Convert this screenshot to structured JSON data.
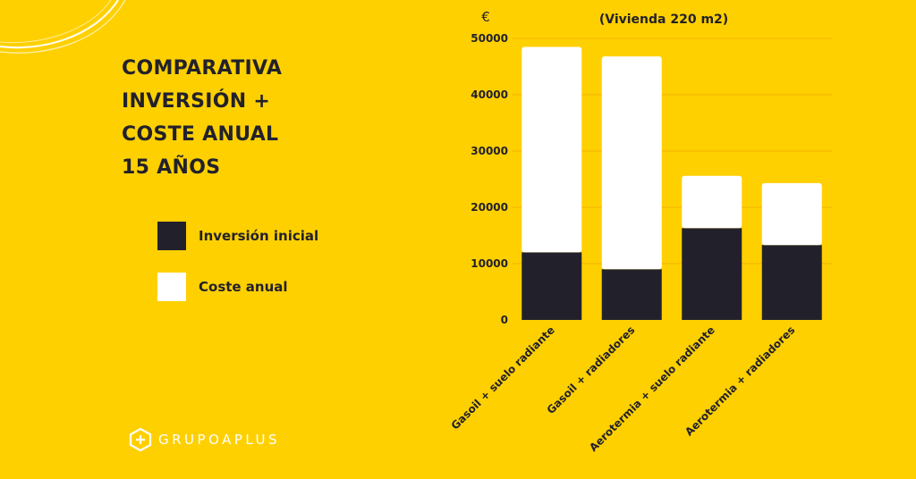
{
  "heading": {
    "lines": [
      "COMPARATIVA",
      "INVERSIÓN +",
      "COSTE ANUAL",
      "15 AÑOS"
    ]
  },
  "logo": {
    "text": "GRUPOAPLUS",
    "icon": "hexagon-plus-logo-icon"
  },
  "colors": {
    "background": "#FFD000",
    "inversion": "#22212B",
    "coste": "#FFFFFF",
    "logo": "#FFFFFF"
  },
  "chart_data": {
    "type": "bar",
    "stacked": true,
    "title": "(Vivienda 220 m2)",
    "ylabel": "€",
    "xlabel": "",
    "ylim": [
      0,
      50000
    ],
    "yticks": [
      0,
      10000,
      20000,
      30000,
      40000,
      50000
    ],
    "grid": true,
    "categories": [
      "Gasoil + suelo radiante",
      "Gasoil + radiadores",
      "Aerotermia + suelo radiante",
      "Aerotermia + radiadores"
    ],
    "series": [
      {
        "name": "Inversión inicial",
        "color": "#22212B",
        "values": [
          12000,
          9000,
          16300,
          13300
        ]
      },
      {
        "name": "Coste anual",
        "color": "#FFFFFF",
        "values": [
          36500,
          37800,
          9300,
          11000
        ]
      }
    ],
    "legend_position": "left"
  }
}
